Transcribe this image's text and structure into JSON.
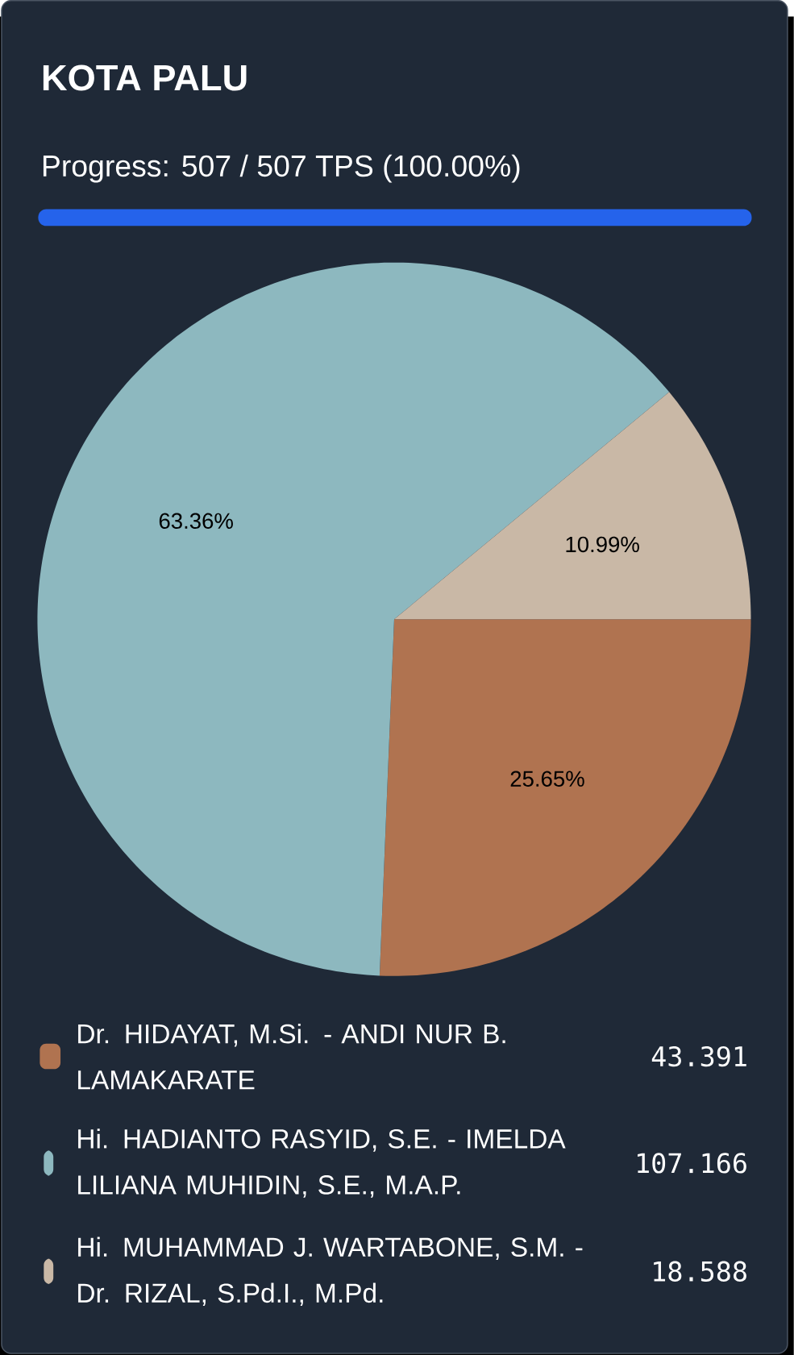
{
  "chart_data": {
    "type": "pie",
    "title": "KOTA PALU",
    "subtitle": "Progress: 507 / 507 TPS (100.00%)",
    "categories": [
      "Dr. HIDAYAT, M.Si. - ANDI NUR B. LAMAKARATE",
      "Hi. HADIANTO RASYID, S.E. - IMELDA LILIANA MUHIDIN, S.E., M.A.P.",
      "Hi. MUHAMMAD J. WARTABONE, S.M. - Dr. RIZAL, S.Pd.I., M.Pd."
    ],
    "values": [
      25.65,
      63.36,
      10.99
    ],
    "value_labels": [
      "25.65%",
      "63.36%",
      "10.99%"
    ],
    "annotations": [
      "43.391",
      "107.166",
      "18.588"
    ],
    "colors": [
      "#b07350",
      "#8db8bf",
      "#c9b8a6"
    ],
    "legend": "bottom"
  }
}
